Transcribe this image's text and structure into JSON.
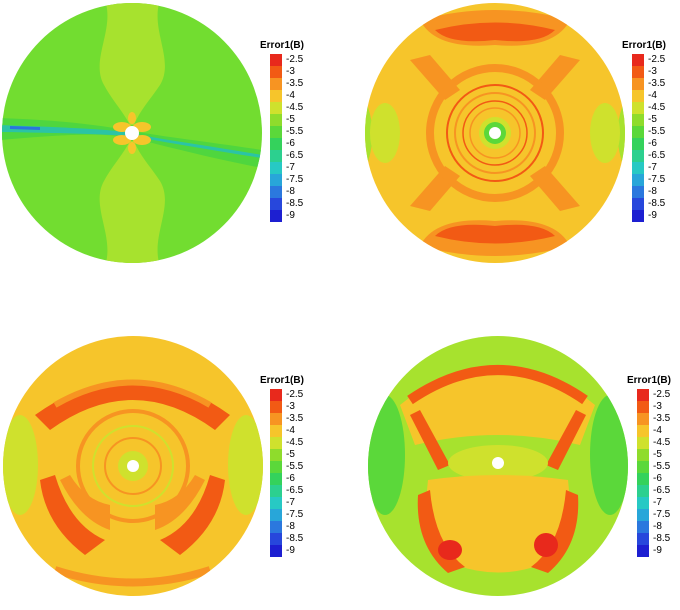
{
  "figure": {
    "legend_title": "Error1(B)",
    "legend_ticks": [
      "-2.5",
      "-3",
      "-3.5",
      "-4",
      "-4.5",
      "-5",
      "-5.5",
      "-6",
      "-6.5",
      "-7",
      "-7.5",
      "-8",
      "-8.5",
      "-9"
    ],
    "legend_colors": [
      "#e8291c",
      "#f25a14",
      "#f79422",
      "#f6c52b",
      "#cfe12d",
      "#8fdc2c",
      "#5bd83a",
      "#34d25c",
      "#2cd08f",
      "#27c9c4",
      "#28a6d9",
      "#2b78de",
      "#2747dc",
      "#1d1fd1"
    ]
  },
  "panels": [
    {
      "id": "top-left",
      "theme": "green"
    },
    {
      "id": "top-right",
      "theme": "orange-ring"
    },
    {
      "id": "bottom-left",
      "theme": "red-cross"
    },
    {
      "id": "bottom-right",
      "theme": "red-butterfly"
    }
  ]
}
